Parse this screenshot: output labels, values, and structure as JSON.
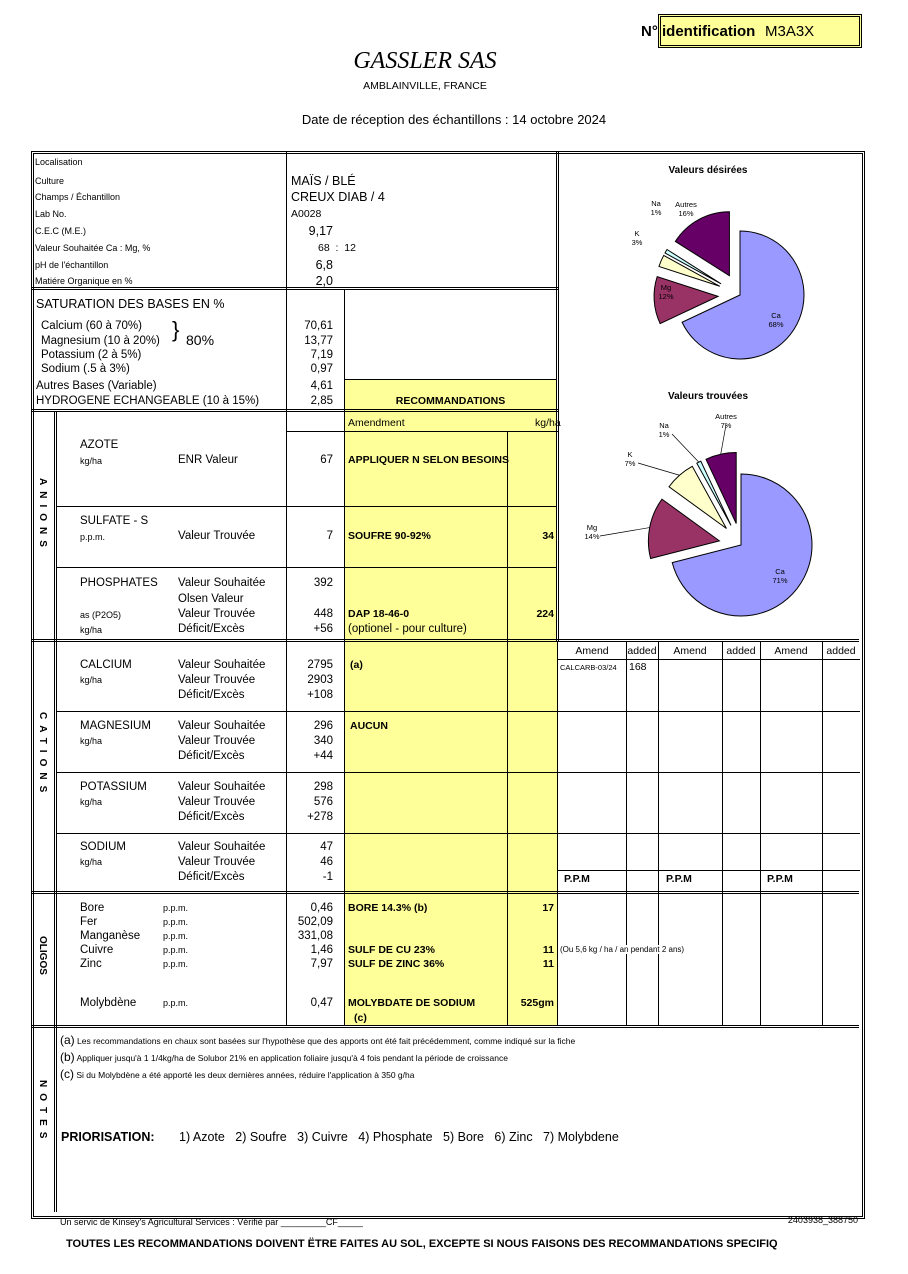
{
  "header": {
    "id_label": "N° identification",
    "id_value": "M3A3X",
    "company": "GASSLER SAS",
    "location": "AMBLAINVILLE, FRANCE",
    "reception_date": "Date de réception des échantillons : 14 octobre 2024"
  },
  "info": {
    "labels": [
      "Localisation",
      "Culture",
      "Champs / Échantillon",
      "Lab No.",
      "C.E.C (M.E.)",
      "Valeur Souhaitée Ca : Mg, %",
      "pH de l'échantillon",
      "Matiére Organique en %"
    ],
    "culture": "MAÏS / BLÉ",
    "champs": "CREUX DIAB / 4",
    "lab_no": "A0028",
    "cec": "9,17",
    "ca_mg": "68  :  12",
    "ph": "6,8",
    "mo": "2,0"
  },
  "saturation": {
    "title": "SATURATION DES BASES EN %",
    "bracket_total": "80%",
    "rows": [
      {
        "label": "Calcium (60 à 70%)",
        "value": "70,61"
      },
      {
        "label": "Magnesium (10 à 20%)",
        "value": "13,77"
      },
      {
        "label": "Potassium (2 à 5%)",
        "value": "7,19"
      },
      {
        "label": "Sodium (.5 à 3%)",
        "value": "0,97"
      },
      {
        "label": "Autres Bases (Variable)",
        "value": "4,61"
      },
      {
        "label": "HYDROGENE ECHANGEABLE (10 à 15%)",
        "value": "2,85"
      }
    ],
    "recommandations": "RECOMMANDATIONS"
  },
  "anions": {
    "side_label": "ANIONS",
    "amendment_header": "Amendment",
    "kgha_header": "kg/ha",
    "azote": {
      "name": "AZOTE",
      "unit": "kg/ha",
      "label": "ENR Valeur",
      "value": "67",
      "rec": "APPLIQUER N SELON BESOINS"
    },
    "sulfate": {
      "name": "SULFATE - S",
      "unit": "p.p.m.",
      "label": "Valeur Trouvée",
      "value": "7",
      "rec": "SOUFRE 90-92%",
      "qty": "34"
    },
    "phosphates": {
      "name": "PHOSPHATES",
      "unit1": "as (P2O5)",
      "unit2": "kg/ha",
      "l1": "Valeur Souhaitée",
      "v1": "392",
      "l2": "Olsen Valeur",
      "l3": "Valeur Trouvée",
      "v3": "448",
      "l4": "Déficit/Excès",
      "v4": "+56",
      "rec": "DAP 18-46-0",
      "qty": "224",
      "rec_note": "(optionel - pour culture)"
    }
  },
  "cations": {
    "side_label": "CATIONS",
    "rows": [
      {
        "name": "CALCIUM",
        "unit": "kg/ha",
        "souhaitee": "2795",
        "trouvee": "2903",
        "deficit": "+108",
        "rec": "(a)"
      },
      {
        "name": "MAGNESIUM",
        "unit": "kg/ha",
        "souhaitee": "296",
        "trouvee": "340",
        "deficit": "+44",
        "rec": "AUCUN"
      },
      {
        "name": "POTASSIUM",
        "unit": "kg/ha",
        "souhaitee": "298",
        "trouvee": "576",
        "deficit": "+278",
        "rec": ""
      },
      {
        "name": "SODIUM",
        "unit": "kg/ha",
        "souhaitee": "47",
        "trouvee": "46",
        "deficit": "-1",
        "rec": ""
      }
    ],
    "labels": {
      "souhaitee": "Valeur Souhaitée",
      "trouvee": "Valeur Trouvée",
      "deficit": "Déficit/Excès"
    }
  },
  "amend_grid": {
    "headers": [
      "Amend",
      "added",
      "Amend",
      "added",
      "Amend",
      "added"
    ],
    "first_amend": "CALCARB-03/24",
    "first_added": "168",
    "ppm": [
      "P.P.M",
      "P.P.M",
      "P.P.M"
    ],
    "cu_note": "(Ou 5,6 kg / ha / an pendant 2 ans)"
  },
  "oligos": {
    "side_label": "OLIGOS",
    "rows": [
      {
        "name": "Bore",
        "unit": "p.p.m.",
        "value": "0,46",
        "rec": "BORE 14.3% (b)",
        "qty": "17"
      },
      {
        "name": "Fer",
        "unit": "p.p.m.",
        "value": "502,09",
        "rec": "",
        "qty": ""
      },
      {
        "name": "Manganèse",
        "unit": "p.p.m.",
        "value": "331,08",
        "rec": "",
        "qty": ""
      },
      {
        "name": "Cuivre",
        "unit": "p.p.m.",
        "value": "1,46",
        "rec": "SULF DE CU 23%",
        "qty": "11"
      },
      {
        "name": "Zinc",
        "unit": "p.p.m.",
        "value": "7,97",
        "rec": "SULF DE ZINC 36%",
        "qty": "11"
      },
      {
        "name": "Molybdène",
        "unit": "p.p.m.",
        "value": "0,47",
        "rec": "MOLYBDATE DE SODIUM",
        "qty": "525gm"
      }
    ],
    "mo_note": "(c)"
  },
  "notes": {
    "side_label": "NOTES",
    "items": [
      {
        "mark": "(a)",
        "text": "Les recommandations en chaux sont basées sur l'hypothèse que des apports ont été fait précédemment, comme indiqué sur la fiche"
      },
      {
        "mark": "(b)",
        "text": "Appliquer jusqu'à 1 1/4kg/ha de Solubor 21% en application foliaire jusqu'à 4 fois pendant la période de croissance"
      },
      {
        "mark": "(c)",
        "text": "Si du Molybdène a été apporté les deux dernières années, réduire l'application à 350 g/ha"
      }
    ],
    "priorisation_label": "PRIORISATION:",
    "priorisation": "1) Azote   2) Soufre   3) Cuivre   4) Phosphate   5) Bore   6) Zinc   7) Molybdene"
  },
  "footer": {
    "service": "Un servic de Kinsey's Agricultural Services : Vérifié par _________CF_____",
    "ref": "2403938_388750",
    "disclaimer": "TOUTES LES RECOMMANDATIONS DOIVENT ËTRE FAITES AU SOL, EXCEPTE SI NOUS FAISONS DES RECOMMANDATIONS SPECIFIQ"
  },
  "chart_data": [
    {
      "type": "pie",
      "title": "Valeurs désirées",
      "categories": [
        "Ca",
        "Mg",
        "K",
        "Na",
        "Autres"
      ],
      "values": [
        68,
        12,
        3,
        1,
        16
      ],
      "labels": [
        "68%",
        "12%",
        "3%",
        "1%",
        "16%"
      ],
      "colors": [
        "#9999ff",
        "#993366",
        "#ffffcc",
        "#ccffff",
        "#660066"
      ]
    },
    {
      "type": "pie",
      "title": "Valeurs trouvées",
      "categories": [
        "Ca",
        "Mg",
        "K",
        "Na",
        "Autres"
      ],
      "values": [
        71,
        14,
        7,
        1,
        7
      ],
      "labels": [
        "71%",
        "14%",
        "7%",
        "1%",
        "7%"
      ],
      "colors": [
        "#9999ff",
        "#993366",
        "#ffffcc",
        "#ccffff",
        "#660066"
      ]
    }
  ]
}
